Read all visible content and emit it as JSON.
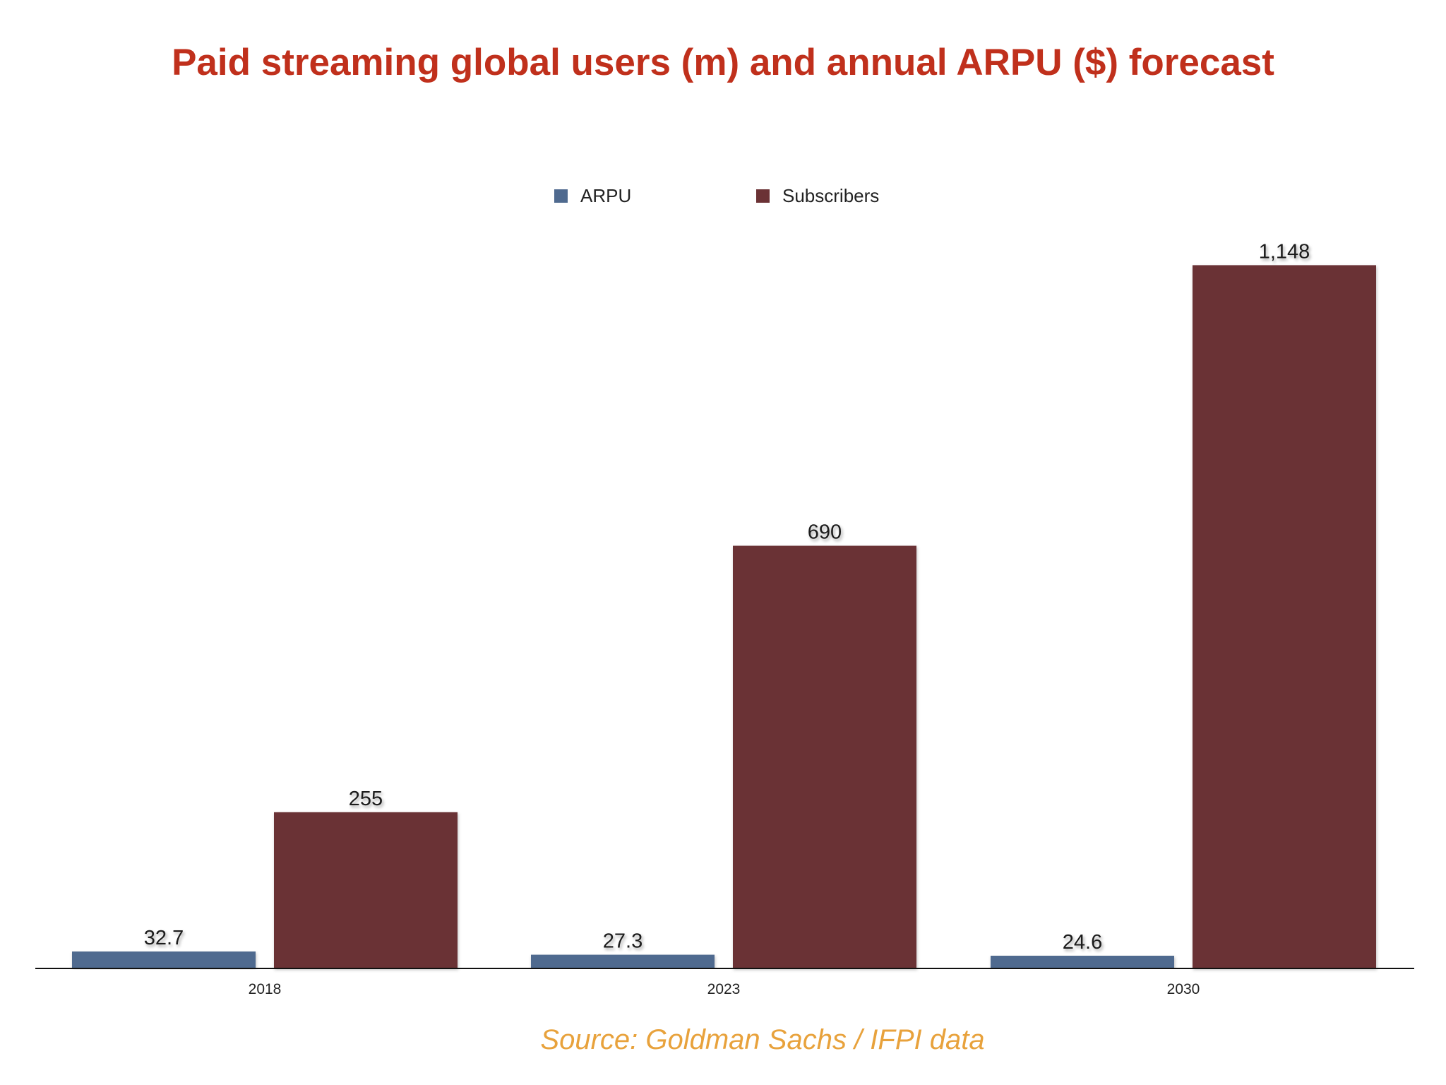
{
  "title": "Paid streaming global users (m) and annual ARPU ($) forecast",
  "source": "Source: Goldman Sachs / IFPI data",
  "legend": [
    {
      "label": "ARPU",
      "color": "#4f6a8f"
    },
    {
      "label": "Subscribers",
      "color": "#6b3235"
    }
  ],
  "chart_data": {
    "type": "bar",
    "title": "Paid streaming global users (m) and annual ARPU ($) forecast",
    "categories": [
      "2018",
      "2023",
      "2030"
    ],
    "series": [
      {
        "name": "ARPU",
        "values": [
          32.7,
          27.3,
          24.6
        ],
        "labels": [
          "32.7",
          "27.3",
          "24.6"
        ],
        "color": "#4f6a8f"
      },
      {
        "name": "Subscribers",
        "values": [
          255,
          690,
          1148
        ],
        "labels": [
          "255",
          "690",
          "1,148"
        ],
        "color": "#6b3235"
      }
    ],
    "xlabel": "",
    "ylabel": "",
    "ylim": [
      0,
      1160
    ],
    "grid": false,
    "legend_position": "top-center"
  }
}
